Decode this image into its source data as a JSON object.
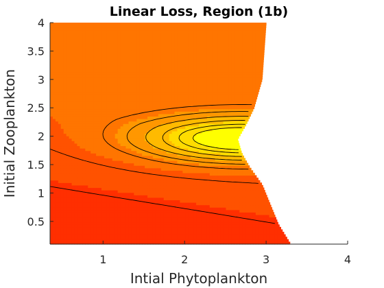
{
  "chart_data": {
    "type": "contour",
    "title": "Linear Loss, Region (1b)",
    "xlabel": "Intial Phytoplankton",
    "ylabel": "Initial Zooplankton",
    "xlim": [
      0.35,
      4
    ],
    "ylim": [
      0.1,
      4
    ],
    "xticks": [
      1,
      2,
      3,
      4
    ],
    "xtick_labels": [
      "1",
      "2",
      "3",
      "4"
    ],
    "yticks": [
      0.5,
      1,
      1.5,
      2,
      2.5,
      3,
      3.5,
      4
    ],
    "ytick_labels": [
      "0.5",
      "1",
      "1.5",
      "2",
      "2.5",
      "3",
      "3.5",
      "4"
    ],
    "grid": false,
    "colormap": "autumn",
    "colors": {
      "low": "#ff0000",
      "high": "#ffff00"
    },
    "region_boundary": {
      "x": [
        3.0,
        2.95,
        2.85,
        2.75,
        2.65,
        2.7,
        2.8,
        2.95,
        3.05,
        3.15,
        3.3
      ],
      "y": [
        4.0,
        3.0,
        2.5,
        2.2,
        1.95,
        1.7,
        1.45,
        1.15,
        0.8,
        0.45,
        0.1
      ]
    },
    "peak": {
      "x": 2.7,
      "y": 1.95
    }
  }
}
